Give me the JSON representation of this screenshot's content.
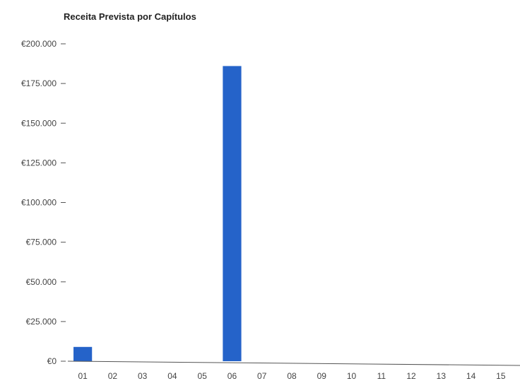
{
  "chart_data": {
    "type": "bar",
    "title": "Receita Prevista por Capítulos",
    "xlabel": "",
    "ylabel": "",
    "categories": [
      "01",
      "02",
      "03",
      "04",
      "05",
      "06",
      "07",
      "08",
      "09",
      "10",
      "11",
      "12",
      "13",
      "14",
      "15"
    ],
    "values": [
      9000,
      0,
      0,
      0,
      0,
      186000,
      0,
      0,
      0,
      0,
      0,
      0,
      0,
      0,
      0
    ],
    "ylim": [
      0,
      200000
    ],
    "yticks": [
      0,
      25000,
      50000,
      75000,
      100000,
      125000,
      150000,
      175000,
      200000
    ],
    "ytick_labels": [
      "€0",
      "€25.000",
      "€50.000",
      "€75.000",
      "€100.000",
      "€125.000",
      "€150.000",
      "€175.000",
      "€200.000"
    ],
    "grid": false,
    "legend": "none",
    "bar_color": "#2563c9",
    "axis_color": "#555555",
    "text_color": "#444444"
  }
}
